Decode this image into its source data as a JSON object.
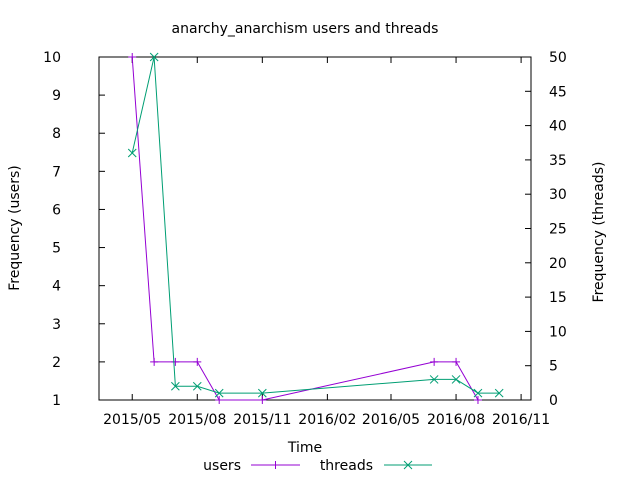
{
  "chart_data": {
    "type": "line",
    "title": "anarchy_anarchism users and threads",
    "xlabel": "Time",
    "ylabel": "Frequency (users)",
    "y2label": "Frequency (threads)",
    "x_tick_labels": [
      "2015/05",
      "2015/08",
      "2015/11",
      "2016/02",
      "2016/05",
      "2016/08",
      "2016/11"
    ],
    "xlim": [
      "2015-03-15",
      "2016-11-15"
    ],
    "ylim": [
      1,
      10
    ],
    "y2lim": [
      0,
      50
    ],
    "y_ticks": [
      1,
      2,
      3,
      4,
      5,
      6,
      7,
      8,
      9,
      10
    ],
    "y2_ticks": [
      0,
      5,
      10,
      15,
      20,
      25,
      30,
      35,
      40,
      45,
      50
    ],
    "grid": false,
    "legend_position": "bottom-center",
    "series": [
      {
        "name": "users",
        "axis": "left",
        "color": "#9400d3",
        "marker": "plus",
        "points": [
          {
            "x": "2015-05-01",
            "y": 10
          },
          {
            "x": "2015-06-01",
            "y": 2
          },
          {
            "x": "2015-07-01",
            "y": 2
          },
          {
            "x": "2015-08-01",
            "y": 2
          },
          {
            "x": "2015-09-01",
            "y": 1
          },
          {
            "x": "2015-11-01",
            "y": 1
          },
          {
            "x": "2016-07-01",
            "y": 2
          },
          {
            "x": "2016-08-01",
            "y": 2
          },
          {
            "x": "2016-09-01",
            "y": 1
          }
        ]
      },
      {
        "name": "threads",
        "axis": "right",
        "color": "#009e73",
        "marker": "cross",
        "points": [
          {
            "x": "2015-05-01",
            "y": 36
          },
          {
            "x": "2015-06-01",
            "y": 50
          },
          {
            "x": "2015-07-01",
            "y": 2
          },
          {
            "x": "2015-08-01",
            "y": 2
          },
          {
            "x": "2015-09-01",
            "y": 1
          },
          {
            "x": "2015-11-01",
            "y": 1
          },
          {
            "x": "2016-07-01",
            "y": 3
          },
          {
            "x": "2016-08-01",
            "y": 3
          },
          {
            "x": "2016-09-01",
            "y": 1
          },
          {
            "x": "2016-10-01",
            "y": 1
          }
        ]
      }
    ]
  }
}
